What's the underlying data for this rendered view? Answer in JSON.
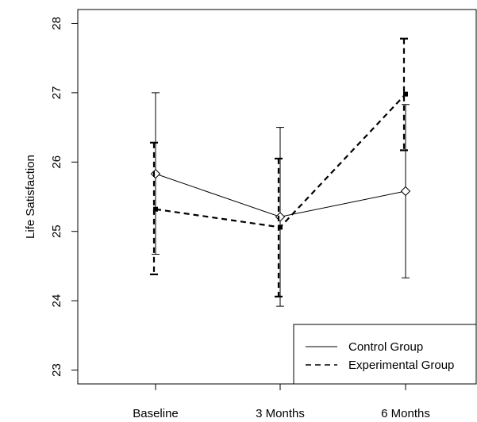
{
  "chart_data": {
    "type": "line",
    "title": "",
    "xlabel": "",
    "ylabel": "Life Satisfaction",
    "categories": [
      "Baseline",
      "3 Months",
      "6 Months"
    ],
    "ylim": [
      22.8,
      28.2
    ],
    "yticks": [
      23,
      24,
      25,
      26,
      27,
      28
    ],
    "legend_position": "bottom-right",
    "grid": false,
    "series": [
      {
        "name": "Control Group",
        "style": "solid",
        "marker": "diamond",
        "values": [
          25.83,
          25.21,
          25.58
        ],
        "err_low": [
          24.67,
          23.92,
          24.33
        ],
        "err_high": [
          27.0,
          26.5,
          26.83
        ]
      },
      {
        "name": "Experimental Group",
        "style": "dashed",
        "marker": "square",
        "values": [
          25.32,
          25.06,
          26.98
        ],
        "err_low": [
          24.38,
          24.06,
          26.17
        ],
        "err_high": [
          26.28,
          26.05,
          27.78
        ]
      }
    ]
  }
}
